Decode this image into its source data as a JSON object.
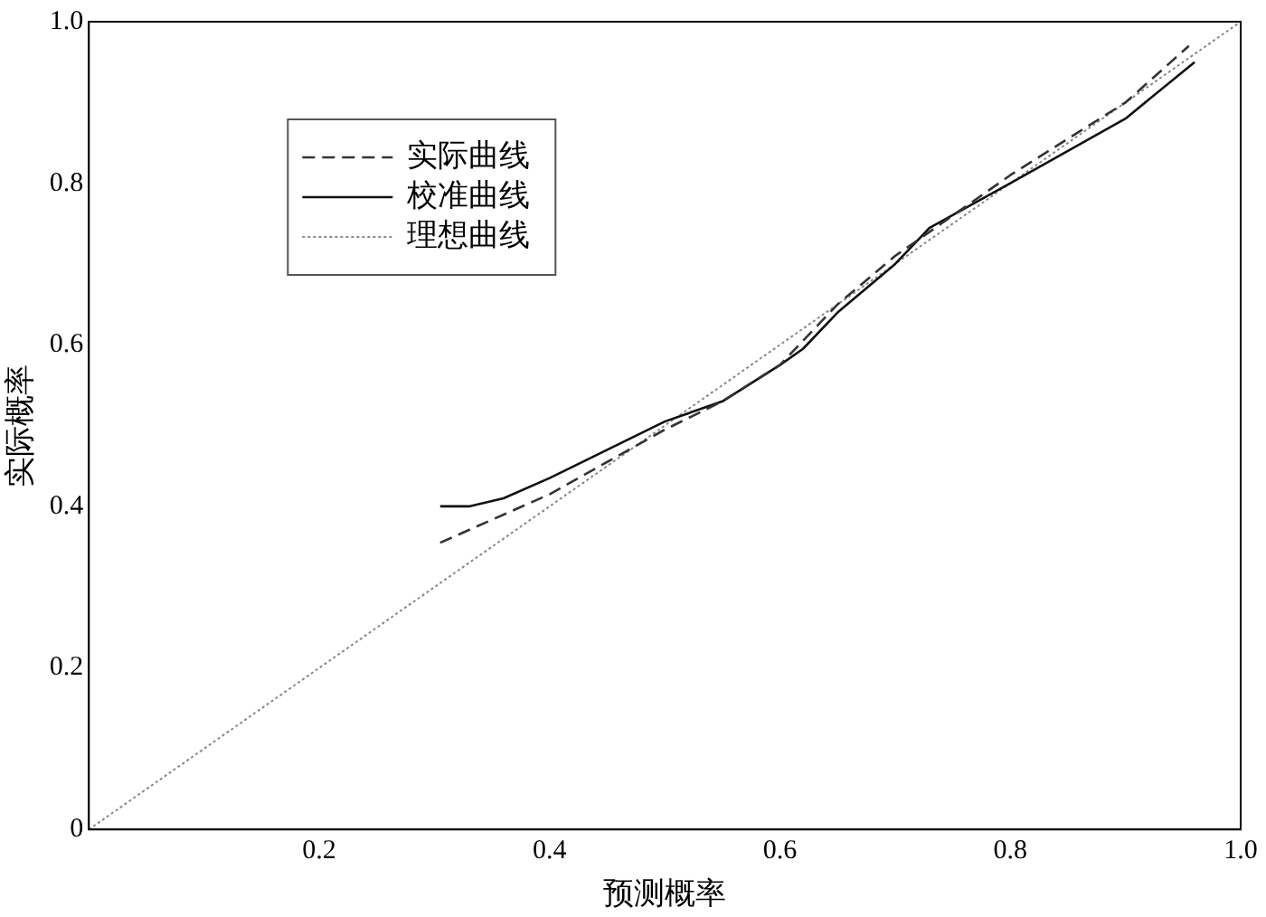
{
  "chart_data": {
    "type": "line",
    "xlabel": "预测概率",
    "ylabel": "实际概率",
    "xlim": [
      0,
      1
    ],
    "ylim": [
      0,
      1
    ],
    "xticks": [
      0.2,
      0.4,
      0.6,
      0.8,
      {
        "value": 1,
        "label": "1.0"
      }
    ],
    "yticks": [
      0,
      0.2,
      0.4,
      0.6,
      0.8,
      {
        "value": 1,
        "label": "1.0"
      }
    ],
    "grid": false,
    "legend": "top left",
    "marker": "none",
    "series": [
      {
        "name": "实际曲线",
        "color": "#333333",
        "line_style": "dashed",
        "x": [
          0.305,
          0.4,
          0.5,
          0.55,
          0.6,
          0.65,
          0.7,
          0.75,
          0.8,
          0.9,
          0.955
        ],
        "values": [
          0.355,
          0.415,
          0.495,
          0.53,
          0.575,
          0.65,
          0.71,
          0.76,
          0.81,
          0.9,
          0.97
        ]
      },
      {
        "name": "校准曲线",
        "color": "#111111",
        "line_style": "solid",
        "x": [
          0.305,
          0.33,
          0.36,
          0.4,
          0.45,
          0.5,
          0.52,
          0.55,
          0.6,
          0.62,
          0.65,
          0.7,
          0.73,
          0.8,
          0.9,
          0.96
        ],
        "values": [
          0.4,
          0.4,
          0.41,
          0.435,
          0.47,
          0.505,
          0.515,
          0.53,
          0.575,
          0.595,
          0.64,
          0.7,
          0.745,
          0.8,
          0.88,
          0.95
        ]
      },
      {
        "name": "理想曲线",
        "color": "#888888",
        "line_style": "dotted",
        "x": [
          0,
          1
        ],
        "values": [
          0,
          1
        ]
      }
    ]
  }
}
